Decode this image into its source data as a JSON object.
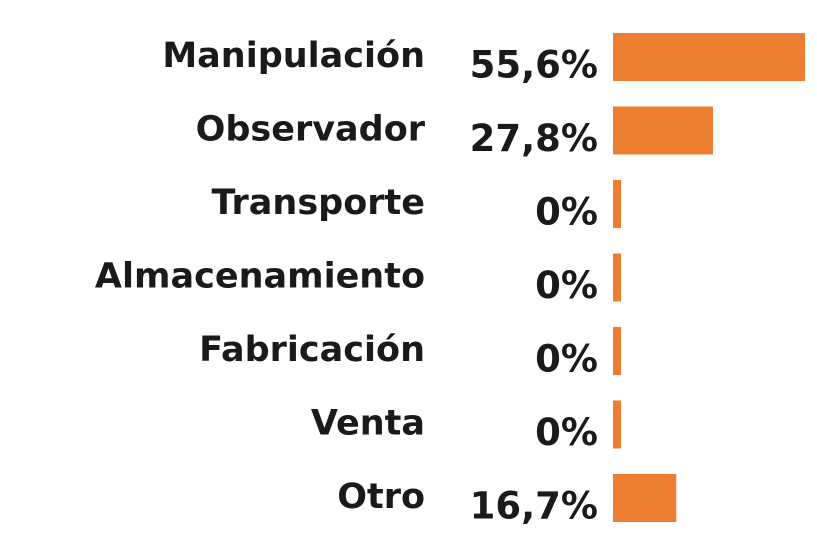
{
  "chart_data": {
    "type": "bar",
    "orientation": "horizontal",
    "categories": [
      "Manipulación",
      "Observador",
      "Transporte",
      "Almacenamiento",
      "Fabricación",
      "Venta",
      "Otro"
    ],
    "values": [
      55.6,
      27.8,
      0,
      0,
      0,
      0,
      16.7
    ],
    "value_labels": [
      "55,6%",
      "27,8%",
      "0%",
      "0%",
      "0%",
      "0%",
      "16,7%"
    ],
    "color": "#ED7D31"
  }
}
